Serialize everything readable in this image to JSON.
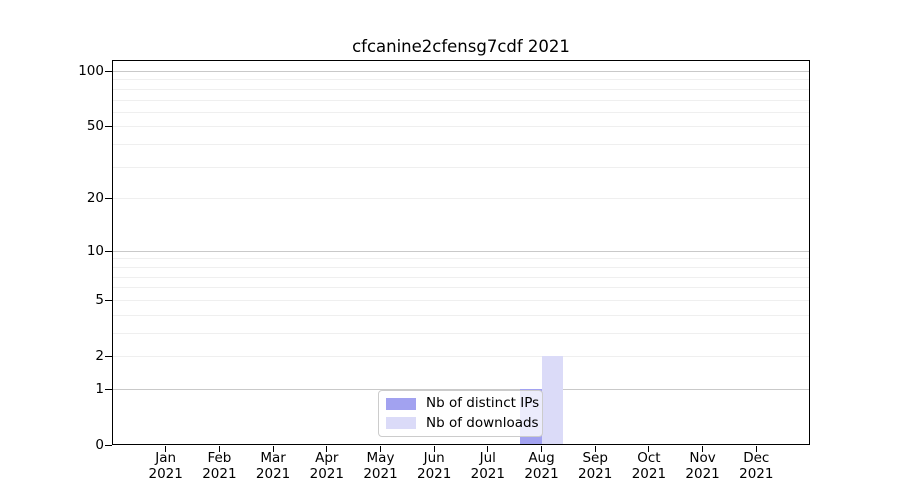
{
  "chart_data": {
    "type": "bar",
    "title": "cfcanine2cfensg7cdf 2021",
    "x_year": "2021",
    "categories": [
      "Jan",
      "Feb",
      "Mar",
      "Apr",
      "May",
      "Jun",
      "Jul",
      "Aug",
      "Sep",
      "Oct",
      "Nov",
      "Dec"
    ],
    "series": [
      {
        "name": "Nb of distinct IPs",
        "color": "#a2a2f0",
        "values": [
          0,
          0,
          0,
          0,
          0,
          0,
          0,
          1,
          0,
          0,
          0,
          0
        ]
      },
      {
        "name": "Nb of downloads",
        "color": "#dbdbf8",
        "values": [
          0,
          0,
          0,
          0,
          0,
          0,
          0,
          2,
          0,
          0,
          0,
          0
        ]
      }
    ],
    "y_axis": {
      "scale": "log1p",
      "ticks": [
        0,
        1,
        2,
        5,
        10,
        20,
        50,
        100
      ],
      "tick_labels": [
        "0",
        "1",
        "2",
        "5",
        "10",
        "20",
        "50",
        "100"
      ],
      "major_gridlines": [
        1,
        10,
        100
      ],
      "minor_gridlines": [
        2,
        3,
        4,
        5,
        6,
        7,
        8,
        9,
        20,
        30,
        40,
        50,
        60,
        70,
        80,
        90
      ]
    },
    "legend": {
      "position": "bottom-center"
    },
    "grid": true,
    "colors": {
      "distinct_ips": "#a2a2f0",
      "downloads": "#dbdbf8",
      "major_grid": "#c9c9c9",
      "minor_grid": "#efefef",
      "spine": "#000000",
      "text": "#000000",
      "legend_border": "#cccccc"
    }
  }
}
